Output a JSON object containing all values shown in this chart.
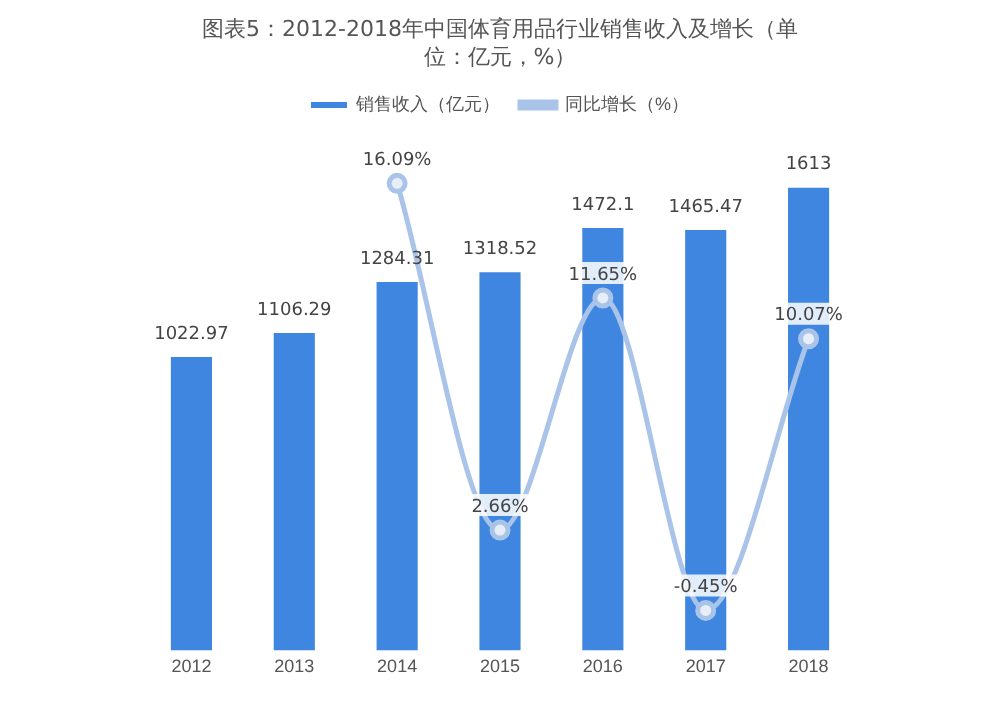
{
  "chart_data": {
    "type": "bar",
    "title": "图表5：2012-2018年中国体育用品行业销售收入及增长（单位：亿元，%）",
    "categories": [
      "2012",
      "2013",
      "2014",
      "2015",
      "2016",
      "2017",
      "2018"
    ],
    "series": [
      {
        "name": "销售收入（亿元）",
        "color": "#3f86e0",
        "values": [
          1022.97,
          1106.29,
          1284.31,
          1318.52,
          1472.1,
          1465.47,
          1613
        ]
      },
      {
        "name": "同比增长（%）",
        "type": "line",
        "axis": "y2",
        "color": "#a9c4e8",
        "values": [
          null,
          null,
          16.09,
          2.66,
          11.65,
          -0.45,
          10.07
        ],
        "value_labels": [
          null,
          null,
          "16.09%",
          "2.66%",
          "11.65%",
          "-0.45%",
          "10.07%"
        ]
      }
    ],
    "data_labels": true,
    "legend": "top",
    "grid": false,
    "marker": "circle",
    "tick_labels": "x"
  }
}
